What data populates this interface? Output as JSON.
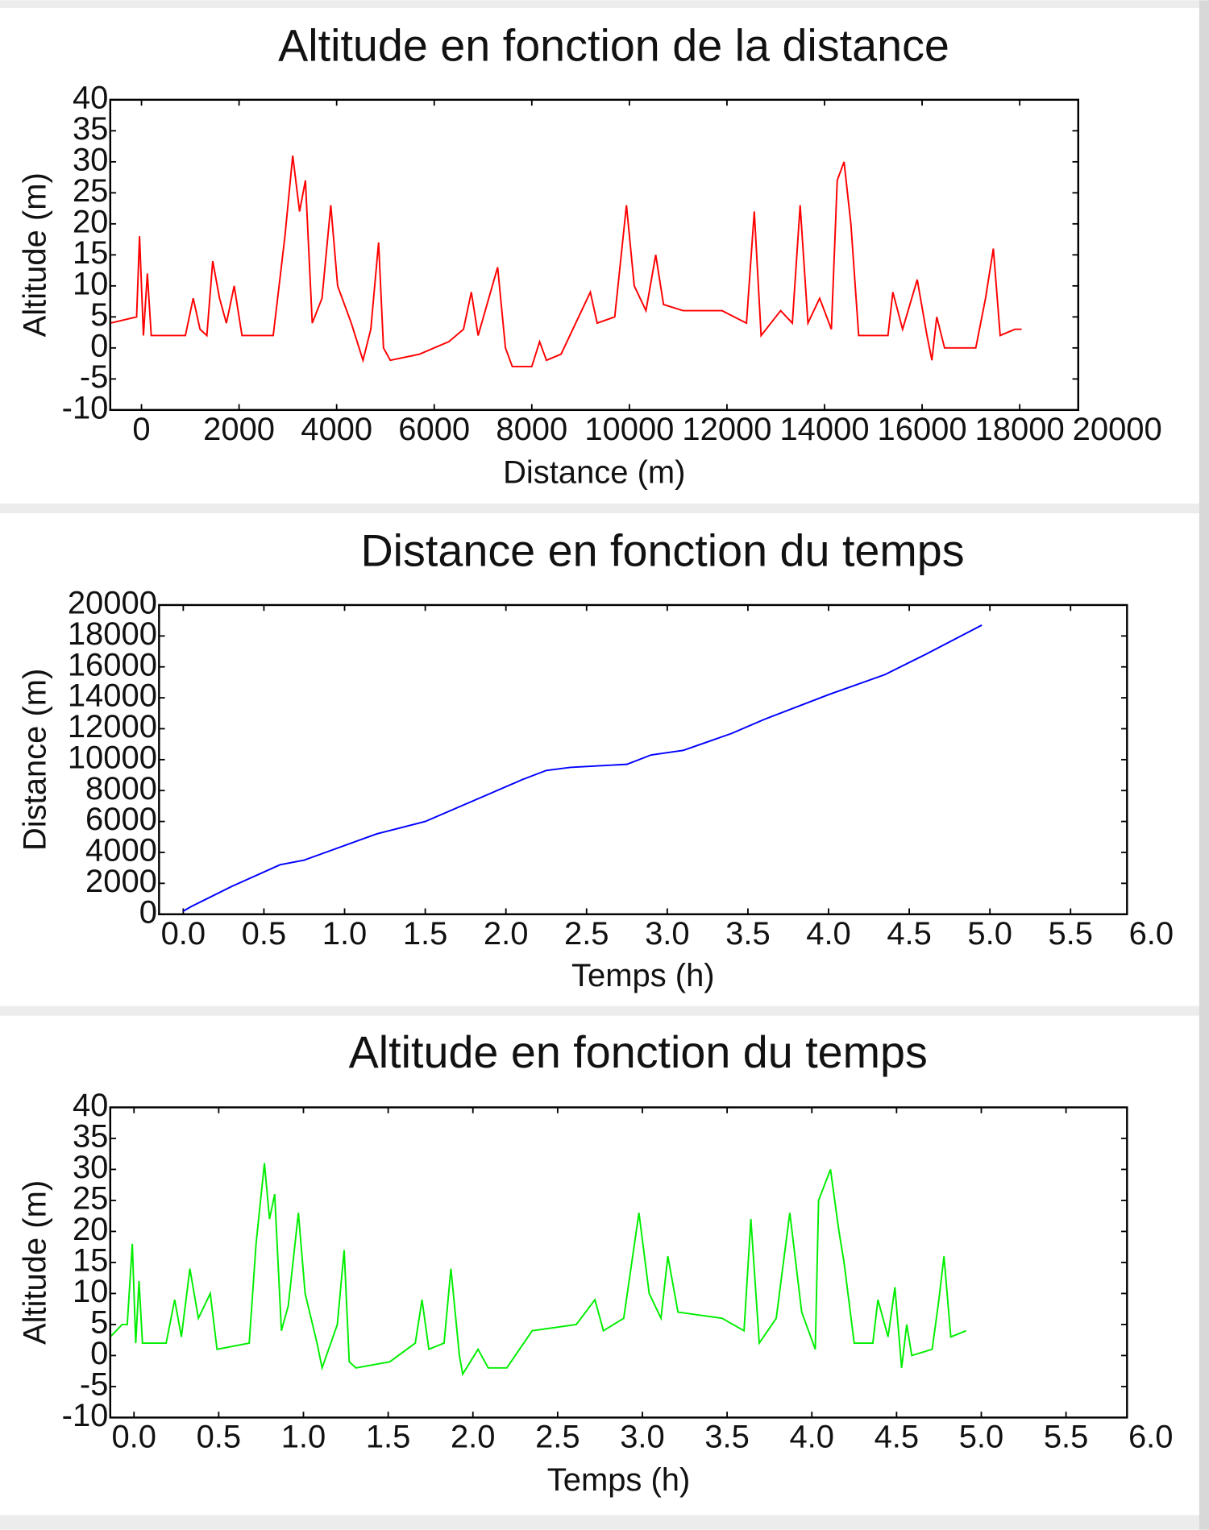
{
  "chart_data": [
    {
      "type": "line",
      "title": "Altitude en fonction de la distance",
      "x_label": "Distance (m)",
      "y_label": "Altitude (m)",
      "color": "#ff0000",
      "xlim": [
        -640,
        19200
      ],
      "ylim": [
        -10,
        40
      ],
      "xticks": [
        0,
        2000,
        4000,
        6000,
        8000,
        10000,
        12000,
        14000,
        16000,
        18000,
        20000
      ],
      "yticks": [
        -10,
        -5,
        0,
        5,
        10,
        15,
        20,
        25,
        30,
        35,
        40
      ],
      "x": [
        -640,
        -100,
        -40,
        40,
        120,
        200,
        900,
        1060,
        1200,
        1340,
        1460,
        1600,
        1740,
        1900,
        2060,
        2700,
        2940,
        3100,
        3240,
        3360,
        3500,
        3700,
        3880,
        4020,
        4300,
        4540,
        4700,
        4860,
        4960,
        5100,
        5700,
        6300,
        6600,
        6760,
        6900,
        7300,
        7460,
        7600,
        8000,
        8160,
        8300,
        8600,
        8900,
        9200,
        9340,
        9700,
        9940,
        10100,
        10340,
        10540,
        10700,
        11100,
        11900,
        12400,
        12560,
        12700,
        13100,
        13340,
        13500,
        13660,
        13900,
        14140,
        14260,
        14400,
        14540,
        14700,
        15300,
        15400,
        15600,
        15900,
        16100,
        16200,
        16300,
        16460,
        17100,
        17300,
        17460,
        17600,
        17900,
        18040
      ],
      "values": [
        4,
        5,
        18,
        2,
        12,
        2,
        2,
        8,
        3,
        2,
        14,
        8,
        4,
        10,
        2,
        2,
        18,
        31,
        22,
        27,
        4,
        8,
        23,
        10,
        4,
        -2,
        3,
        17,
        0,
        -2,
        -1,
        1,
        3,
        9,
        2,
        13,
        0,
        -3,
        -3,
        1,
        -2,
        -1,
        4,
        9,
        4,
        5,
        23,
        10,
        6,
        15,
        7,
        6,
        6,
        4,
        22,
        2,
        6,
        4,
        23,
        4,
        8,
        3,
        27,
        30,
        20,
        2,
        2,
        9,
        3,
        11,
        2,
        -2,
        5,
        0,
        0,
        8,
        16,
        2,
        3,
        3
      ]
    },
    {
      "type": "line",
      "title": "Distance en fonction du temps",
      "x_label": "Temps (h)",
      "y_label": "Distance (m)",
      "color": "#0000ff",
      "xlim": [
        -0.15,
        5.85
      ],
      "ylim": [
        0,
        20000
      ],
      "xticks": [
        {
          "value": 0,
          "label": "0.0"
        },
        0.5,
        {
          "value": 1,
          "label": "1.0"
        },
        1.5,
        {
          "value": 2,
          "label": "2.0"
        },
        2.5,
        {
          "value": 3,
          "label": "3.0"
        },
        3.5,
        {
          "value": 4,
          "label": "4.0"
        },
        4.5,
        {
          "value": 5,
          "label": "5.0"
        },
        5.5,
        {
          "value": 6,
          "label": "6.0"
        }
      ],
      "yticks": [
        0,
        2000,
        4000,
        6000,
        8000,
        10000,
        12000,
        14000,
        16000,
        18000,
        20000
      ],
      "x": [
        0,
        0.05,
        0.3,
        0.6,
        0.75,
        1.2,
        1.5,
        1.9,
        2.1,
        2.25,
        2.4,
        2.75,
        2.9,
        3.1,
        3.4,
        3.6,
        4.0,
        4.35,
        4.6,
        4.95
      ],
      "values": [
        200,
        500,
        1800,
        3200,
        3500,
        5200,
        6000,
        7800,
        8700,
        9300,
        9500,
        9700,
        10300,
        10600,
        11700,
        12600,
        14200,
        15500,
        16800,
        18700
      ]
    },
    {
      "type": "line",
      "title": "Altitude en fonction du temps",
      "x_label": "Temps (h)",
      "y_label": "Altitude (m)",
      "color": "#00ee00",
      "xlim": [
        -0.14,
        5.86
      ],
      "ylim": [
        -10,
        40
      ],
      "xticks": [
        {
          "value": 0,
          "label": "0.0"
        },
        0.5,
        {
          "value": 1,
          "label": "1.0"
        },
        1.5,
        {
          "value": 2,
          "label": "2.0"
        },
        2.5,
        {
          "value": 3,
          "label": "3.0"
        },
        3.5,
        {
          "value": 4,
          "label": "4.0"
        },
        4.5,
        {
          "value": 5,
          "label": "5.0"
        },
        5.5,
        {
          "value": 6,
          "label": "6.0"
        }
      ],
      "yticks": [
        -10,
        -5,
        0,
        5,
        10,
        15,
        20,
        25,
        30,
        35,
        40
      ],
      "x": [
        -0.14,
        -0.07,
        -0.04,
        -0.01,
        0.01,
        0.03,
        0.05,
        0.19,
        0.24,
        0.28,
        0.33,
        0.38,
        0.45,
        0.49,
        0.68,
        0.72,
        0.77,
        0.8,
        0.83,
        0.87,
        0.91,
        0.97,
        1.01,
        1.08,
        1.11,
        1.2,
        1.24,
        1.27,
        1.31,
        1.51,
        1.66,
        1.7,
        1.74,
        1.83,
        1.87,
        1.92,
        1.94,
        2.03,
        2.09,
        2.2,
        2.35,
        2.61,
        2.72,
        2.77,
        2.89,
        2.98,
        3.04,
        3.11,
        3.15,
        3.21,
        3.47,
        3.6,
        3.64,
        3.69,
        3.79,
        3.87,
        3.94,
        4.02,
        4.04,
        4.11,
        4.16,
        4.19,
        4.25,
        4.36,
        4.39,
        4.45,
        4.49,
        4.53,
        4.56,
        4.59,
        4.71,
        4.75,
        4.78,
        4.82,
        4.91
      ],
      "values": [
        3,
        5,
        5,
        18,
        2,
        12,
        2,
        2,
        9,
        3,
        14,
        6,
        10,
        1,
        2,
        18,
        31,
        22,
        26,
        4,
        8,
        23,
        10,
        2,
        -2,
        5,
        17,
        -1,
        -2,
        -1,
        2,
        9,
        1,
        2,
        14,
        0,
        -3,
        1,
        -2,
        -2,
        4,
        5,
        9,
        4,
        6,
        23,
        10,
        6,
        16,
        7,
        6,
        4,
        22,
        2,
        6,
        23,
        7,
        1,
        25,
        30,
        20,
        15,
        2,
        2,
        9,
        3,
        11,
        -2,
        5,
        0,
        1,
        9,
        16,
        3,
        4
      ]
    }
  ]
}
